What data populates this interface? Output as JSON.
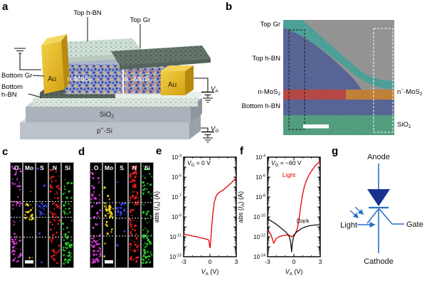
{
  "panels": {
    "a": {
      "letter": "a",
      "labels": {
        "top_hbn": "Top h-BN",
        "top_gr": "Top Gr",
        "au_left": "Au",
        "au_right": "Au",
        "bottom_gr": "Bottom Gr",
        "bottom_hbn_line1": "Bottom",
        "bottom_hbn_line2": "h-BN",
        "n_mos2_main": "n-MoS",
        "n_mos2_sub": "2",
        "nm_mos2_main": "n",
        "nm_mos2_sup": "−",
        "nm_mos2_rest": "-MoS",
        "nm_mos2_sub": "2",
        "sio2_main": "SiO",
        "sio2_sub": "2",
        "psi_main": "p",
        "psi_sup": "+",
        "psi_rest": "-Si",
        "va_main": "V",
        "va_sub": "A",
        "vg_main": "V",
        "vg_sub": "G"
      }
    },
    "b": {
      "letter": "b",
      "labels": {
        "top_gr": "Top Gr",
        "top_hbn": "Top h-BN",
        "n_mos2_main": "n-MoS",
        "n_mos2_sub": "2",
        "bottom_hbn": "Bottom h-BN",
        "nm_mos2_main": "n",
        "nm_mos2_sup": "−",
        "nm_mos2_rest": "-MoS",
        "nm_mos2_sub": "2",
        "sio2_main": "SiO",
        "sio2_sub": "2"
      },
      "colors": {
        "matrix": "#8a8a8a",
        "graphene": "#38998f",
        "hbn": "#44548c",
        "n_mos2": "#b23230",
        "nm_mos2": "#bc7420",
        "sio2": "#3f9671"
      }
    },
    "c": {
      "letter": "c"
    },
    "d": {
      "letter": "d"
    },
    "e": {
      "letter": "e"
    },
    "f": {
      "letter": "f"
    },
    "g": {
      "letter": "g",
      "labels": {
        "anode": "Anode",
        "cathode": "Cathode",
        "gate": "Gate",
        "light": "Light"
      },
      "line_color": "#2a72c8",
      "triangle_fill": "#17328f"
    }
  },
  "eds": {
    "elements": [
      "O",
      "Mo",
      "S",
      "N",
      "Si"
    ],
    "colors": {
      "O": "#e83ce8",
      "Mo": "#ffdf1f",
      "S": "#3348ff",
      "N": "#ff1f1f",
      "Si": "#2ed32e"
    },
    "panels": [
      {
        "id": "c",
        "dashes": [
          0.37,
          0.52,
          0.71
        ],
        "bands": {
          "O": [
            [
              0,
              0.38,
              0.5
            ],
            [
              0.38,
              0.72,
              0.22
            ],
            [
              0.72,
              1,
              0.75
            ]
          ],
          "Mo": [
            [
              0,
              0.38,
              0.02
            ],
            [
              0.38,
              0.55,
              1.0
            ],
            [
              0.55,
              1,
              0.05
            ]
          ],
          "S": [
            [
              0,
              0.38,
              0.05
            ],
            [
              0.38,
              0.52,
              1.0
            ],
            [
              0.52,
              1,
              0.03
            ]
          ],
          "N": [
            [
              0,
              1,
              0.5
            ]
          ],
          "Si": [
            [
              0,
              0.7,
              0.3
            ],
            [
              0.7,
              1,
              1.1
            ]
          ]
        }
      },
      {
        "id": "d",
        "dashes": [
          0.38,
          0.53,
          0.7
        ],
        "bands": {
          "O": [
            [
              0,
              0.4,
              0.45
            ],
            [
              0.4,
              0.7,
              0.25
            ],
            [
              0.7,
              1,
              1.2
            ]
          ],
          "Mo": [
            [
              0,
              0.38,
              0.06
            ],
            [
              0.38,
              0.56,
              1.3
            ],
            [
              0.56,
              0.82,
              0.2
            ],
            [
              0.82,
              1,
              0.03
            ]
          ],
          "S": [
            [
              0,
              0.38,
              0.05
            ],
            [
              0.38,
              0.53,
              1.1
            ],
            [
              0.53,
              1,
              0.03
            ]
          ],
          "N": [
            [
              0,
              0.4,
              0.9
            ],
            [
              0.4,
              0.7,
              0.5
            ],
            [
              0.7,
              1,
              0.65
            ]
          ],
          "Si": [
            [
              0,
              0.7,
              0.35
            ],
            [
              0.7,
              1,
              1.2
            ]
          ]
        }
      }
    ]
  },
  "chart_data": [
    {
      "type": "line",
      "panel": "e",
      "title_parts": {
        "v": "V",
        "sub": "G",
        "rest": " = 0 V"
      },
      "xlabel_parts": {
        "v": "V",
        "sub": "A",
        "rest": " (V)"
      },
      "ylabel_parts": {
        "pre": "abs (",
        "i": "I",
        "sub": "A",
        "post": ") (A)"
      },
      "xlim": [
        -3,
        3
      ],
      "xticks": [
        -3,
        0,
        3
      ],
      "xminor_step": 1,
      "ylog_range": [
        -13,
        -3
      ],
      "ytick_exponents": [
        -3,
        -5,
        -7,
        -9,
        -11,
        -13
      ],
      "grid": false,
      "legend": "none",
      "series": [
        {
          "name": "VG = 0 V",
          "color": "#e60000",
          "x": [
            -3,
            -2.5,
            -2,
            -1.5,
            -1,
            -0.6,
            -0.3,
            -0.12,
            -0.03,
            0.02,
            0.1,
            0.2,
            0.35,
            0.5,
            0.7,
            0.9,
            1.1,
            1.5,
            2,
            2.5,
            3
          ],
          "y": [
            1.8e-11,
            1.5e-11,
            1.2e-11,
            1e-11,
            8e-12,
            6.5e-12,
            5.5e-12,
            4.5e-12,
            1e-12,
            8e-13,
            5e-12,
            1e-10,
            3e-09,
            3e-08,
            1.2e-07,
            2.2e-07,
            3e-07,
            5e-07,
            1.2e-06,
            3e-06,
            8e-06
          ]
        }
      ],
      "series_labels": []
    },
    {
      "type": "line",
      "panel": "f",
      "title_parts": {
        "v": "V",
        "sub": "G",
        "rest": " = −60 V"
      },
      "xlabel_parts": {
        "v": "V",
        "sub": "A",
        "rest": " (V)"
      },
      "ylabel_parts": {
        "pre": "abs (",
        "i": "I",
        "sub": "A",
        "post": ") (A)"
      },
      "xlim": [
        -3,
        3
      ],
      "xticks": [
        -3,
        0,
        3
      ],
      "xminor_step": 1,
      "ylog_range": [
        -14,
        -4
      ],
      "ytick_exponents": [
        -4,
        -6,
        -8,
        -10,
        -12,
        -14
      ],
      "grid": false,
      "legend": "inline",
      "series": [
        {
          "name": "Light",
          "color": "#e60000",
          "x": [
            -3,
            -2.8,
            -2.6,
            -2.45,
            -2.3,
            -2.15,
            -2.0,
            -1.7,
            -1.3,
            -0.9,
            -0.5,
            -0.25,
            -0.1,
            0,
            0.15,
            0.35,
            0.55,
            0.75,
            0.95,
            1.15,
            1.4,
            1.7,
            2.0,
            2.5,
            3
          ],
          "y": [
            5e-12,
            3e-12,
            1.5e-12,
            6e-13,
            2.2e-13,
            4e-13,
            7e-13,
            1e-12,
            1.3e-12,
            1.5e-12,
            1.4e-12,
            1e-12,
            1.3e-12,
            1.6e-12,
            2.2e-12,
            5e-12,
            4e-11,
            8e-10,
            1.2e-08,
            8e-08,
            4e-07,
            1.5e-06,
            4e-06,
            1.6e-05,
            4e-05
          ]
        },
        {
          "name": "Dark",
          "color": "#111111",
          "x": [
            -3,
            -2.5,
            -2,
            -1.5,
            -1,
            -0.7,
            -0.5,
            -0.38,
            -0.3,
            -0.26,
            -0.2,
            -0.1,
            0,
            0.2,
            0.5,
            0.9,
            1.3,
            1.8,
            2.3,
            3
          ],
          "y": [
            6e-11,
            3.5e-11,
            1.8e-11,
            8e-12,
            3.5e-12,
            1.8e-12,
            9e-13,
            3e-13,
            8e-14,
            3e-14,
            1.5e-13,
            6e-13,
            1.2e-12,
            2.5e-12,
            4e-12,
            7e-12,
            1e-11,
            1.3e-11,
            1.5e-11,
            1.6e-11
          ]
        }
      ],
      "series_labels": [
        {
          "text": "Light",
          "color": "#e60000",
          "fx": 0.28,
          "fy": 0.2
        },
        {
          "text": "Dark",
          "color": "#111111",
          "fx": 0.55,
          "fy": 0.66
        }
      ]
    }
  ]
}
